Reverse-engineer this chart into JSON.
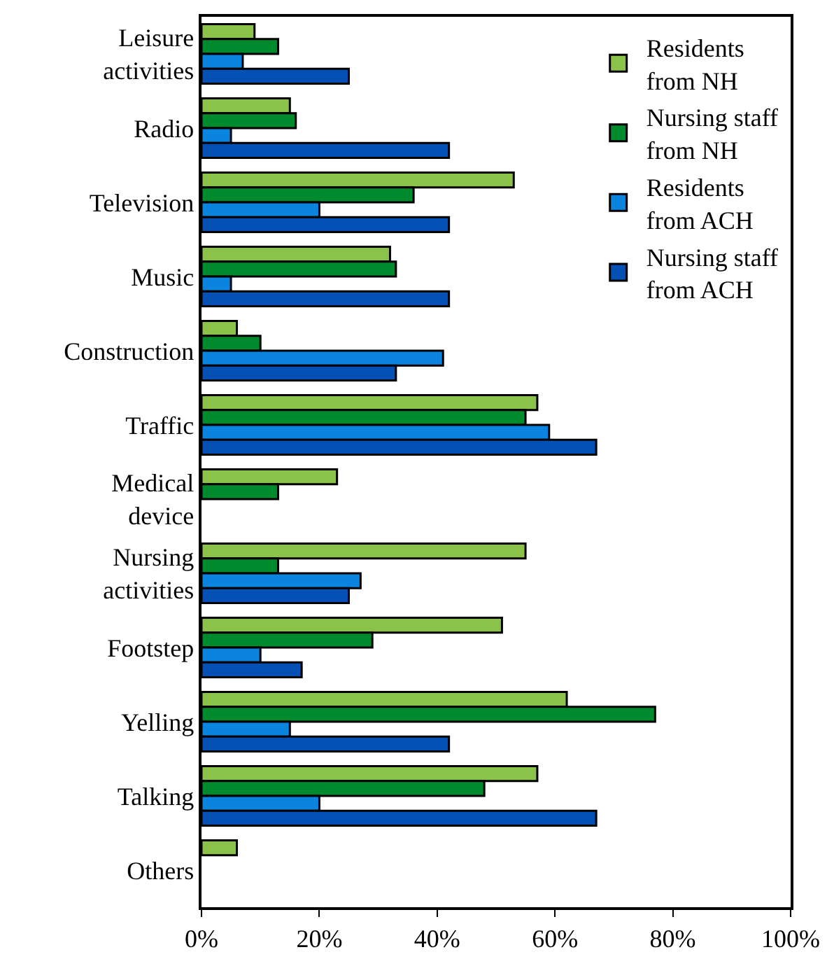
{
  "chart_data": {
    "type": "bar",
    "orientation": "horizontal",
    "categories": [
      "Leisure activities",
      "Radio",
      "Television",
      "Music",
      "Construction",
      "Traffic",
      "Medical device",
      "Nursing activities",
      "Footstep",
      "Yelling",
      "Talking",
      "Others"
    ],
    "series": [
      {
        "name": "Residents from NH",
        "color": "#8bc34a",
        "values": [
          9,
          15,
          53,
          32,
          6,
          57,
          23,
          55,
          51,
          62,
          57,
          6
        ]
      },
      {
        "name": "Nursing staff from NH",
        "color": "#008a2e",
        "values": [
          13,
          16,
          36,
          33,
          10,
          55,
          13,
          13,
          29,
          77,
          48,
          null
        ]
      },
      {
        "name": "Residents from ACH",
        "color": "#0b84e0",
        "values": [
          7,
          5,
          20,
          5,
          41,
          59,
          null,
          27,
          10,
          15,
          20,
          null
        ]
      },
      {
        "name": "Nursing staff from ACH",
        "color": "#0450b4",
        "values": [
          25,
          42,
          42,
          42,
          33,
          67,
          null,
          25,
          17,
          42,
          67,
          null
        ]
      }
    ],
    "xlim": [
      0,
      100
    ],
    "xticks": [
      {
        "value": 0,
        "label": "0%"
      },
      {
        "value": 20,
        "label": "20%"
      },
      {
        "value": 40,
        "label": "40%"
      },
      {
        "value": 60,
        "label": "60%"
      },
      {
        "value": 80,
        "label": "80%"
      },
      {
        "value": 100,
        "label": "100%"
      }
    ],
    "legend": "top right"
  }
}
